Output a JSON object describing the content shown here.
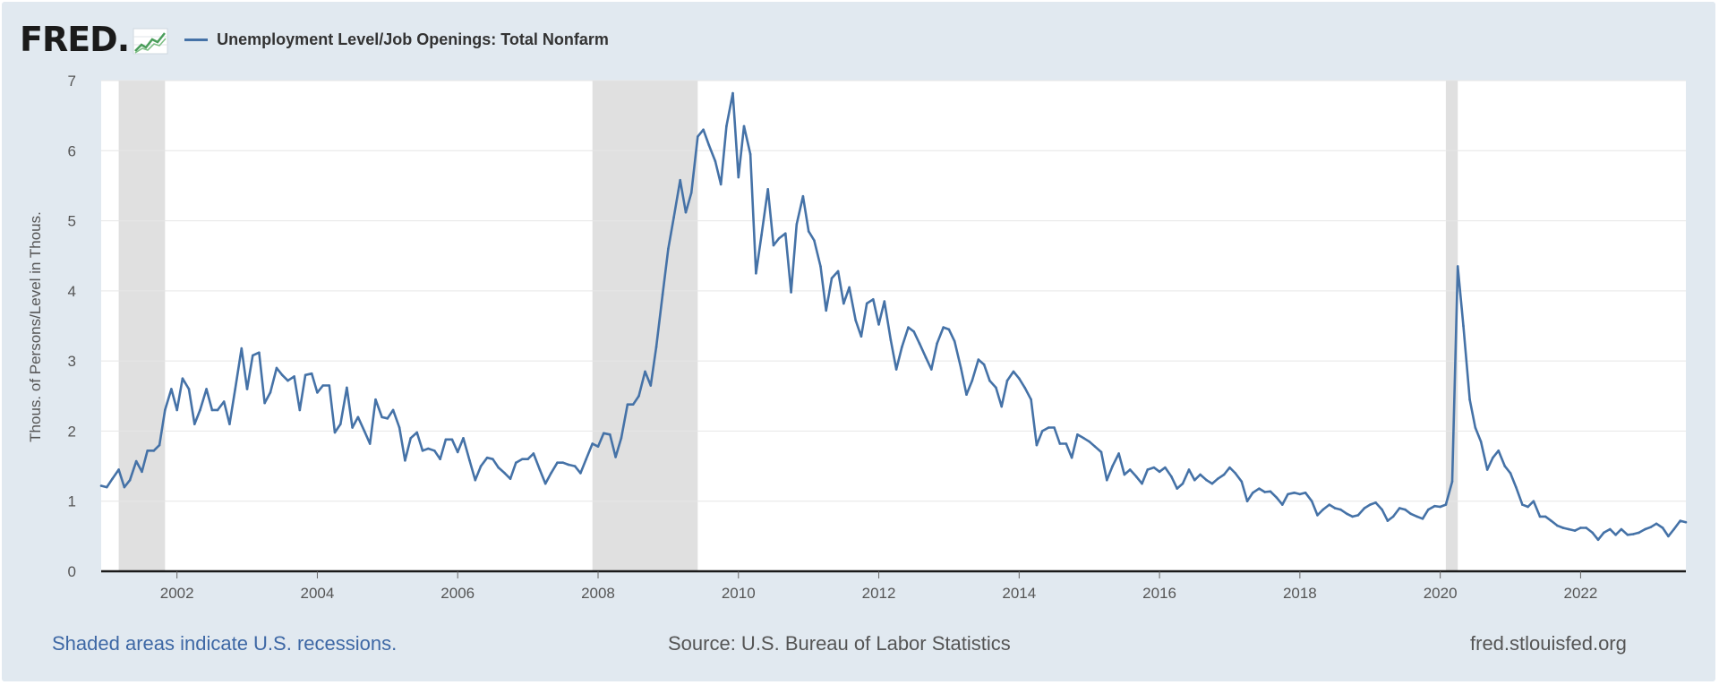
{
  "header": {
    "logo_text": "FRED",
    "logo_suffix": ".",
    "legend_label": "Unemployment Level/Job Openings: Total Nonfarm"
  },
  "footer": {
    "note": "Shaded areas indicate U.S. recessions.",
    "source": "Source: U.S. Bureau of Labor Statistics",
    "url": "fred.stlouisfed.org"
  },
  "colors": {
    "series": "#4572a7",
    "recession": "#e0e0e0",
    "grid": "#e6e6e6",
    "background": "#e1e9f0"
  },
  "chart_data": {
    "type": "line",
    "title": "",
    "ylabel": "Thous. of Persons/Level in Thous.",
    "xlabel": "",
    "xlim": [
      2000.92,
      2023.5
    ],
    "ylim": [
      0,
      7
    ],
    "yticks": [
      0,
      1,
      2,
      3,
      4,
      5,
      6,
      7
    ],
    "xticks": [
      2002,
      2004,
      2006,
      2008,
      2010,
      2012,
      2014,
      2016,
      2018,
      2020,
      2022
    ],
    "recessions": [
      [
        2001.17,
        2001.83
      ],
      [
        2007.92,
        2009.42
      ],
      [
        2020.08,
        2020.25
      ]
    ],
    "series": [
      {
        "name": "Unemployment Level/Job Openings: Total Nonfarm",
        "points": [
          [
            2000.92,
            1.22
          ],
          [
            2001.0,
            1.2
          ],
          [
            2001.08,
            1.32
          ],
          [
            2001.17,
            1.45
          ],
          [
            2001.25,
            1.2
          ],
          [
            2001.33,
            1.3
          ],
          [
            2001.42,
            1.57
          ],
          [
            2001.5,
            1.42
          ],
          [
            2001.58,
            1.72
          ],
          [
            2001.67,
            1.72
          ],
          [
            2001.75,
            1.8
          ],
          [
            2001.83,
            2.3
          ],
          [
            2001.92,
            2.6
          ],
          [
            2002.0,
            2.3
          ],
          [
            2002.08,
            2.75
          ],
          [
            2002.17,
            2.6
          ],
          [
            2002.25,
            2.1
          ],
          [
            2002.33,
            2.3
          ],
          [
            2002.42,
            2.6
          ],
          [
            2002.5,
            2.3
          ],
          [
            2002.58,
            2.3
          ],
          [
            2002.67,
            2.42
          ],
          [
            2002.75,
            2.1
          ],
          [
            2002.83,
            2.6
          ],
          [
            2002.92,
            3.18
          ],
          [
            2003.0,
            2.6
          ],
          [
            2003.08,
            3.08
          ],
          [
            2003.17,
            3.12
          ],
          [
            2003.25,
            2.4
          ],
          [
            2003.33,
            2.55
          ],
          [
            2003.42,
            2.9
          ],
          [
            2003.5,
            2.8
          ],
          [
            2003.58,
            2.72
          ],
          [
            2003.67,
            2.78
          ],
          [
            2003.75,
            2.3
          ],
          [
            2003.83,
            2.8
          ],
          [
            2003.92,
            2.82
          ],
          [
            2004.0,
            2.55
          ],
          [
            2004.08,
            2.65
          ],
          [
            2004.17,
            2.65
          ],
          [
            2004.25,
            1.98
          ],
          [
            2004.33,
            2.1
          ],
          [
            2004.42,
            2.62
          ],
          [
            2004.5,
            2.05
          ],
          [
            2004.58,
            2.2
          ],
          [
            2004.67,
            2.0
          ],
          [
            2004.75,
            1.82
          ],
          [
            2004.83,
            2.45
          ],
          [
            2004.92,
            2.2
          ],
          [
            2005.0,
            2.18
          ],
          [
            2005.08,
            2.3
          ],
          [
            2005.17,
            2.05
          ],
          [
            2005.25,
            1.58
          ],
          [
            2005.33,
            1.9
          ],
          [
            2005.42,
            1.98
          ],
          [
            2005.5,
            1.72
          ],
          [
            2005.58,
            1.75
          ],
          [
            2005.67,
            1.72
          ],
          [
            2005.75,
            1.6
          ],
          [
            2005.83,
            1.88
          ],
          [
            2005.92,
            1.88
          ],
          [
            2006.0,
            1.7
          ],
          [
            2006.08,
            1.9
          ],
          [
            2006.17,
            1.58
          ],
          [
            2006.25,
            1.3
          ],
          [
            2006.33,
            1.5
          ],
          [
            2006.42,
            1.62
          ],
          [
            2006.5,
            1.6
          ],
          [
            2006.58,
            1.48
          ],
          [
            2006.67,
            1.4
          ],
          [
            2006.75,
            1.32
          ],
          [
            2006.83,
            1.55
          ],
          [
            2006.92,
            1.6
          ],
          [
            2007.0,
            1.6
          ],
          [
            2007.08,
            1.68
          ],
          [
            2007.17,
            1.45
          ],
          [
            2007.25,
            1.25
          ],
          [
            2007.33,
            1.4
          ],
          [
            2007.42,
            1.55
          ],
          [
            2007.5,
            1.55
          ],
          [
            2007.58,
            1.52
          ],
          [
            2007.67,
            1.5
          ],
          [
            2007.75,
            1.4
          ],
          [
            2007.83,
            1.6
          ],
          [
            2007.92,
            1.82
          ],
          [
            2008.0,
            1.78
          ],
          [
            2008.08,
            1.97
          ],
          [
            2008.17,
            1.95
          ],
          [
            2008.25,
            1.63
          ],
          [
            2008.33,
            1.9
          ],
          [
            2008.42,
            2.38
          ],
          [
            2008.5,
            2.38
          ],
          [
            2008.58,
            2.5
          ],
          [
            2008.67,
            2.85
          ],
          [
            2008.75,
            2.65
          ],
          [
            2008.83,
            3.2
          ],
          [
            2008.92,
            3.95
          ],
          [
            2009.0,
            4.6
          ],
          [
            2009.08,
            5.05
          ],
          [
            2009.17,
            5.58
          ],
          [
            2009.25,
            5.12
          ],
          [
            2009.33,
            5.4
          ],
          [
            2009.42,
            6.2
          ],
          [
            2009.5,
            6.3
          ],
          [
            2009.58,
            6.08
          ],
          [
            2009.67,
            5.85
          ],
          [
            2009.75,
            5.52
          ],
          [
            2009.83,
            6.35
          ],
          [
            2009.92,
            6.82
          ],
          [
            2010.0,
            5.62
          ],
          [
            2010.08,
            6.35
          ],
          [
            2010.17,
            5.95
          ],
          [
            2010.25,
            4.25
          ],
          [
            2010.33,
            4.8
          ],
          [
            2010.42,
            5.45
          ],
          [
            2010.5,
            4.65
          ],
          [
            2010.58,
            4.75
          ],
          [
            2010.67,
            4.82
          ],
          [
            2010.75,
            3.98
          ],
          [
            2010.83,
            4.95
          ],
          [
            2010.92,
            5.35
          ],
          [
            2011.0,
            4.85
          ],
          [
            2011.08,
            4.72
          ],
          [
            2011.17,
            4.35
          ],
          [
            2011.25,
            3.72
          ],
          [
            2011.33,
            4.18
          ],
          [
            2011.42,
            4.28
          ],
          [
            2011.5,
            3.82
          ],
          [
            2011.58,
            4.05
          ],
          [
            2011.67,
            3.58
          ],
          [
            2011.75,
            3.35
          ],
          [
            2011.83,
            3.82
          ],
          [
            2011.92,
            3.88
          ],
          [
            2012.0,
            3.52
          ],
          [
            2012.08,
            3.85
          ],
          [
            2012.17,
            3.3
          ],
          [
            2012.25,
            2.88
          ],
          [
            2012.33,
            3.2
          ],
          [
            2012.42,
            3.48
          ],
          [
            2012.5,
            3.42
          ],
          [
            2012.58,
            3.25
          ],
          [
            2012.67,
            3.05
          ],
          [
            2012.75,
            2.88
          ],
          [
            2012.83,
            3.25
          ],
          [
            2012.92,
            3.48
          ],
          [
            2013.0,
            3.45
          ],
          [
            2013.08,
            3.28
          ],
          [
            2013.17,
            2.9
          ],
          [
            2013.25,
            2.52
          ],
          [
            2013.33,
            2.72
          ],
          [
            2013.42,
            3.02
          ],
          [
            2013.5,
            2.95
          ],
          [
            2013.58,
            2.72
          ],
          [
            2013.67,
            2.62
          ],
          [
            2013.75,
            2.35
          ],
          [
            2013.83,
            2.72
          ],
          [
            2013.92,
            2.85
          ],
          [
            2014.0,
            2.75
          ],
          [
            2014.08,
            2.62
          ],
          [
            2014.17,
            2.45
          ],
          [
            2014.25,
            1.8
          ],
          [
            2014.33,
            2.0
          ],
          [
            2014.42,
            2.05
          ],
          [
            2014.5,
            2.05
          ],
          [
            2014.58,
            1.82
          ],
          [
            2014.67,
            1.82
          ],
          [
            2014.75,
            1.62
          ],
          [
            2014.83,
            1.95
          ],
          [
            2014.92,
            1.9
          ],
          [
            2015.0,
            1.85
          ],
          [
            2015.08,
            1.78
          ],
          [
            2015.17,
            1.7
          ],
          [
            2015.25,
            1.3
          ],
          [
            2015.33,
            1.5
          ],
          [
            2015.42,
            1.68
          ],
          [
            2015.5,
            1.38
          ],
          [
            2015.58,
            1.45
          ],
          [
            2015.67,
            1.35
          ],
          [
            2015.75,
            1.25
          ],
          [
            2015.83,
            1.45
          ],
          [
            2015.92,
            1.48
          ],
          [
            2016.0,
            1.42
          ],
          [
            2016.08,
            1.48
          ],
          [
            2016.17,
            1.35
          ],
          [
            2016.25,
            1.18
          ],
          [
            2016.33,
            1.25
          ],
          [
            2016.42,
            1.45
          ],
          [
            2016.5,
            1.3
          ],
          [
            2016.58,
            1.38
          ],
          [
            2016.67,
            1.3
          ],
          [
            2016.75,
            1.25
          ],
          [
            2016.83,
            1.32
          ],
          [
            2016.92,
            1.38
          ],
          [
            2017.0,
            1.48
          ],
          [
            2017.08,
            1.4
          ],
          [
            2017.17,
            1.28
          ],
          [
            2017.25,
            1.0
          ],
          [
            2017.33,
            1.12
          ],
          [
            2017.42,
            1.18
          ],
          [
            2017.5,
            1.13
          ],
          [
            2017.58,
            1.14
          ],
          [
            2017.67,
            1.05
          ],
          [
            2017.75,
            0.95
          ],
          [
            2017.83,
            1.1
          ],
          [
            2017.92,
            1.12
          ],
          [
            2018.0,
            1.1
          ],
          [
            2018.08,
            1.12
          ],
          [
            2018.17,
            1.0
          ],
          [
            2018.25,
            0.8
          ],
          [
            2018.33,
            0.88
          ],
          [
            2018.42,
            0.95
          ],
          [
            2018.5,
            0.9
          ],
          [
            2018.58,
            0.88
          ],
          [
            2018.67,
            0.82
          ],
          [
            2018.75,
            0.78
          ],
          [
            2018.83,
            0.8
          ],
          [
            2018.92,
            0.9
          ],
          [
            2019.0,
            0.95
          ],
          [
            2019.08,
            0.98
          ],
          [
            2019.17,
            0.88
          ],
          [
            2019.25,
            0.72
          ],
          [
            2019.33,
            0.78
          ],
          [
            2019.42,
            0.9
          ],
          [
            2019.5,
            0.88
          ],
          [
            2019.58,
            0.82
          ],
          [
            2019.67,
            0.78
          ],
          [
            2019.75,
            0.75
          ],
          [
            2019.83,
            0.88
          ],
          [
            2019.92,
            0.93
          ],
          [
            2020.0,
            0.92
          ],
          [
            2020.08,
            0.95
          ],
          [
            2020.17,
            1.28
          ],
          [
            2020.25,
            4.35
          ],
          [
            2020.33,
            3.5
          ],
          [
            2020.42,
            2.45
          ],
          [
            2020.5,
            2.05
          ],
          [
            2020.58,
            1.85
          ],
          [
            2020.67,
            1.45
          ],
          [
            2020.75,
            1.62
          ],
          [
            2020.83,
            1.72
          ],
          [
            2020.92,
            1.5
          ],
          [
            2021.0,
            1.4
          ],
          [
            2021.08,
            1.2
          ],
          [
            2021.17,
            0.95
          ],
          [
            2021.25,
            0.92
          ],
          [
            2021.33,
            1.0
          ],
          [
            2021.42,
            0.78
          ],
          [
            2021.5,
            0.78
          ],
          [
            2021.58,
            0.72
          ],
          [
            2021.67,
            0.65
          ],
          [
            2021.75,
            0.62
          ],
          [
            2021.83,
            0.6
          ],
          [
            2021.92,
            0.58
          ],
          [
            2022.0,
            0.62
          ],
          [
            2022.08,
            0.62
          ],
          [
            2022.17,
            0.55
          ],
          [
            2022.25,
            0.45
          ],
          [
            2022.33,
            0.55
          ],
          [
            2022.42,
            0.6
          ],
          [
            2022.5,
            0.52
          ],
          [
            2022.58,
            0.6
          ],
          [
            2022.67,
            0.52
          ],
          [
            2022.75,
            0.53
          ],
          [
            2022.83,
            0.55
          ],
          [
            2022.92,
            0.6
          ],
          [
            2023.0,
            0.63
          ],
          [
            2023.08,
            0.68
          ],
          [
            2023.17,
            0.62
          ],
          [
            2023.25,
            0.5
          ],
          [
            2023.33,
            0.6
          ],
          [
            2023.42,
            0.72
          ],
          [
            2023.5,
            0.7
          ]
        ]
      }
    ]
  }
}
